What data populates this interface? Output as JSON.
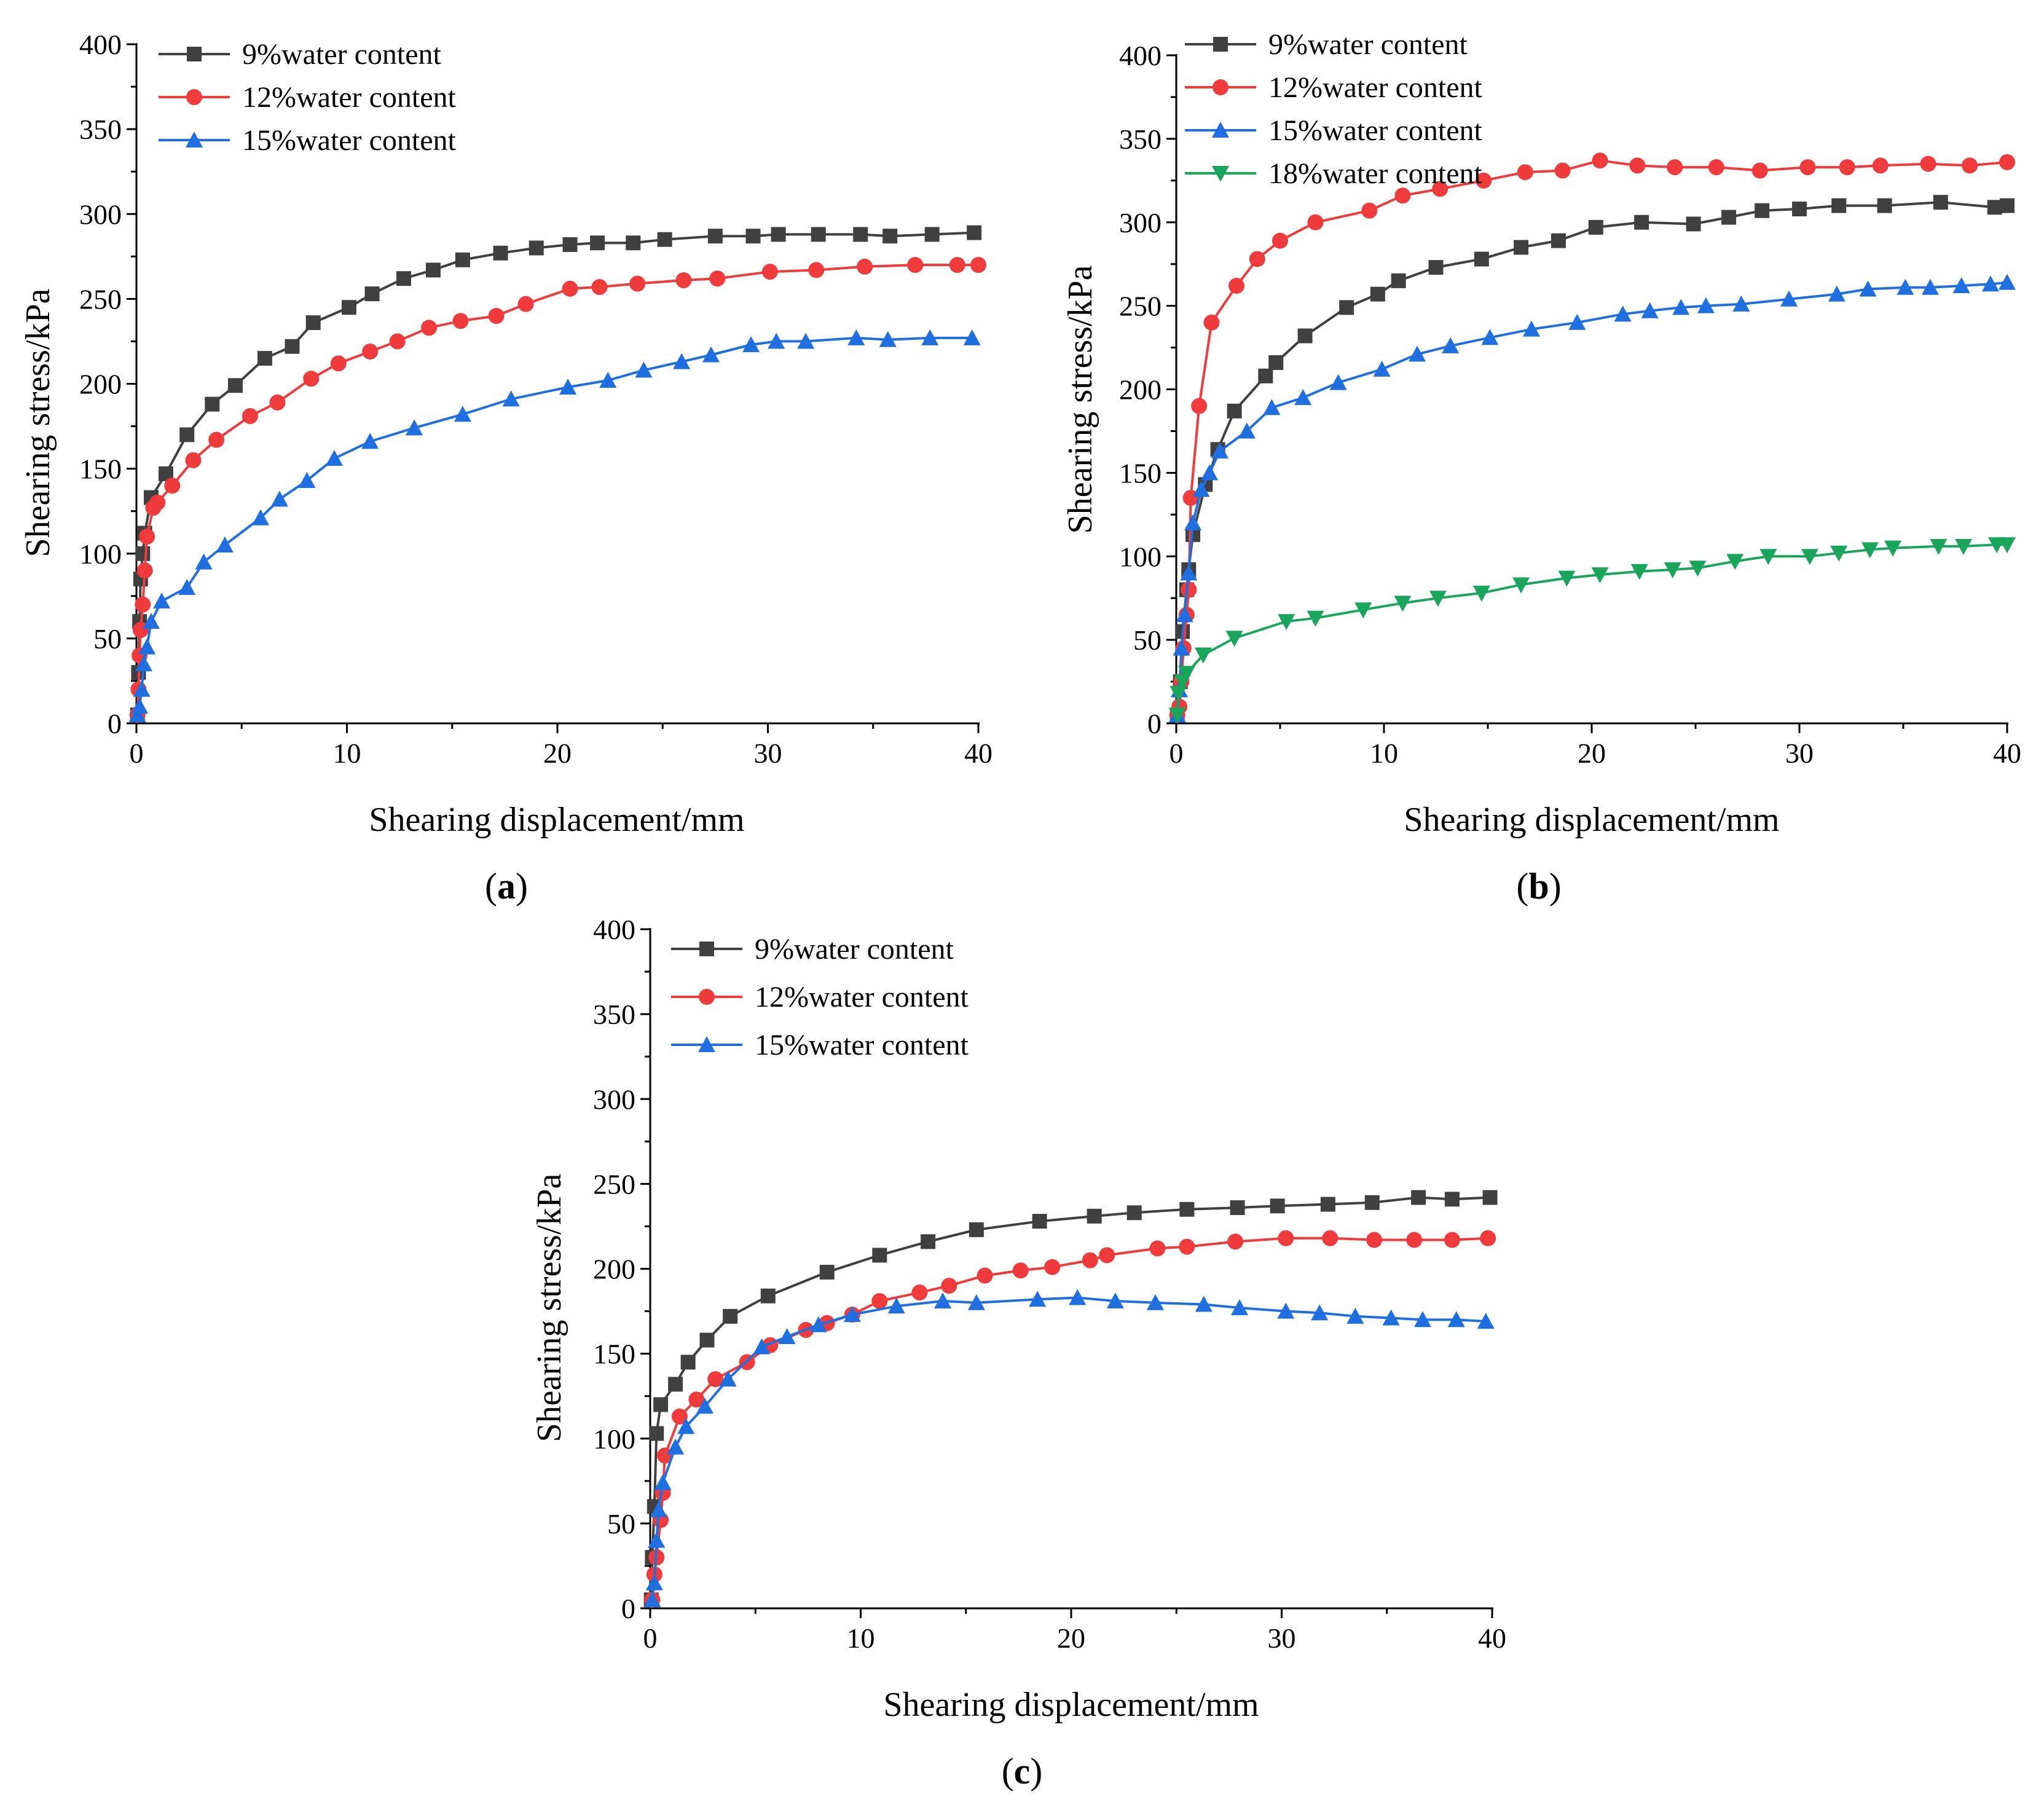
{
  "figure_labels": [
    "a",
    "b",
    "c"
  ],
  "chart_data": [
    {
      "type": "line",
      "panel": "a",
      "xlabel": "Shearing displacement/mm",
      "ylabel": "Shearing stress/kPa",
      "xlim": [
        0,
        40
      ],
      "ylim": [
        0,
        400
      ],
      "xticks": [
        0,
        10,
        20,
        30,
        40
      ],
      "yticks": [
        0,
        50,
        100,
        150,
        200,
        250,
        300,
        350,
        400
      ],
      "legend_position": "top-left",
      "series": [
        {
          "name": "9%water content",
          "color": "#404040",
          "marker": "square",
          "x": [
            0.05,
            0.1,
            0.15,
            0.2,
            0.3,
            0.4,
            0.7,
            1.4,
            2.4,
            3.6,
            4.7,
            6.1,
            7.4,
            8.4,
            10.1,
            11.2,
            12.7,
            14.1,
            15.5,
            17.3,
            19.0,
            20.6,
            21.9,
            23.6,
            25.1,
            27.5,
            29.3,
            30.5,
            32.4,
            34.4,
            35.8,
            37.8,
            39.8
          ],
          "y": [
            5,
            30,
            60,
            85,
            100,
            112,
            133,
            147,
            170,
            188,
            199,
            215,
            222,
            236,
            245,
            253,
            262,
            267,
            273,
            277,
            280,
            282,
            283,
            283,
            285,
            287,
            287,
            288,
            288,
            288,
            287,
            288,
            289
          ]
        },
        {
          "name": "12%water content",
          "color": "#ef3b3b",
          "marker": "circle",
          "x": [
            0.05,
            0.1,
            0.15,
            0.2,
            0.3,
            0.4,
            0.5,
            0.8,
            1.0,
            1.7,
            2.7,
            3.8,
            5.4,
            6.7,
            8.3,
            9.6,
            11.1,
            12.4,
            13.9,
            15.4,
            17.1,
            18.5,
            20.6,
            22.0,
            23.8,
            26.0,
            27.6,
            30.1,
            32.3,
            34.6,
            37.0,
            39.0,
            40.0
          ],
          "y": [
            5,
            20,
            40,
            55,
            70,
            90,
            110,
            127,
            130,
            140,
            155,
            167,
            181,
            189,
            203,
            212,
            219,
            225,
            233,
            237,
            240,
            247,
            256,
            257,
            259,
            261,
            262,
            266,
            267,
            269,
            270,
            270,
            270
          ]
        },
        {
          "name": "15%water content",
          "color": "#1f6fe0",
          "marker": "triangle",
          "x": [
            0.05,
            0.15,
            0.25,
            0.35,
            0.5,
            0.7,
            1.2,
            2.4,
            3.2,
            4.2,
            5.9,
            6.8,
            8.1,
            9.4,
            11.1,
            13.2,
            15.5,
            17.8,
            20.5,
            22.4,
            24.1,
            25.9,
            27.3,
            29.2,
            30.4,
            31.8,
            34.2,
            35.7,
            37.7,
            39.7
          ],
          "y": [
            5,
            10,
            20,
            35,
            45,
            60,
            72,
            80,
            95,
            105,
            121,
            132,
            143,
            156,
            166,
            174,
            182,
            191,
            198,
            202,
            208,
            213,
            217,
            223,
            225,
            225,
            227,
            226,
            227,
            227
          ]
        }
      ]
    },
    {
      "type": "line",
      "panel": "b",
      "xlabel": "Shearing displacement/mm",
      "ylabel": "Shearing stress/kPa",
      "xlim": [
        0,
        40
      ],
      "ylim": [
        0,
        400
      ],
      "xticks": [
        0,
        10,
        20,
        30,
        40
      ],
      "yticks": [
        0,
        50,
        100,
        150,
        200,
        250,
        300,
        350,
        400
      ],
      "legend_position": "top-left",
      "series": [
        {
          "name": "9%water content",
          "color": "#404040",
          "marker": "square",
          "x": [
            0.05,
            0.2,
            0.3,
            0.5,
            0.6,
            0.8,
            1.4,
            2.0,
            2.8,
            4.3,
            4.8,
            6.2,
            8.2,
            9.7,
            10.7,
            12.5,
            14.7,
            16.6,
            18.4,
            20.2,
            22.4,
            24.9,
            26.6,
            28.2,
            30.0,
            31.9,
            34.1,
            36.8,
            39.4,
            40.0
          ],
          "y": [
            5,
            25,
            55,
            80,
            92,
            113,
            143,
            164,
            187,
            208,
            216,
            232,
            249,
            257,
            265,
            273,
            278,
            285,
            289,
            297,
            300,
            299,
            303,
            307,
            308,
            310,
            310,
            312,
            309,
            310
          ]
        },
        {
          "name": "12%water content",
          "color": "#ef3b3b",
          "marker": "circle",
          "x": [
            0.05,
            0.15,
            0.25,
            0.35,
            0.5,
            0.6,
            0.7,
            1.1,
            1.7,
            2.9,
            3.9,
            5.0,
            6.7,
            9.3,
            10.9,
            12.7,
            14.8,
            16.8,
            18.6,
            20.4,
            22.2,
            24.0,
            26.0,
            28.1,
            30.4,
            32.3,
            33.9,
            36.2,
            38.2,
            40.0
          ],
          "y": [
            5,
            10,
            25,
            45,
            65,
            80,
            135,
            190,
            240,
            262,
            278,
            289,
            300,
            307,
            316,
            320,
            325,
            330,
            331,
            337,
            334,
            333,
            333,
            331,
            333,
            333,
            334,
            335,
            334,
            336
          ]
        },
        {
          "name": "15%water content",
          "color": "#1f6fe0",
          "marker": "triangle",
          "x": [
            0.05,
            0.15,
            0.25,
            0.4,
            0.6,
            0.8,
            1.2,
            1.6,
            2.1,
            3.4,
            4.6,
            6.1,
            7.8,
            9.9,
            11.6,
            13.2,
            15.1,
            17.1,
            19.3,
            21.5,
            22.8,
            24.3,
            25.5,
            27.2,
            29.5,
            31.8,
            33.3,
            35.1,
            36.3,
            37.8,
            39.2,
            40.0
          ],
          "y": [
            5,
            20,
            45,
            65,
            90,
            120,
            140,
            150,
            163,
            175,
            189,
            195,
            204,
            212,
            221,
            226,
            231,
            236,
            240,
            245,
            247,
            249,
            250,
            251,
            254,
            257,
            260,
            261,
            261,
            262,
            263,
            264
          ]
        },
        {
          "name": "18%water content",
          "color": "#1aa65a",
          "marker": "triangle-down",
          "x": [
            0.05,
            0.1,
            0.3,
            0.5,
            1.3,
            2.8,
            5.3,
            6.7,
            9.0,
            10.9,
            12.6,
            14.7,
            16.6,
            18.8,
            20.4,
            22.3,
            23.9,
            25.1,
            26.9,
            28.5,
            30.5,
            31.9,
            33.4,
            34.5,
            36.7,
            37.9,
            39.5,
            40.0
          ],
          "y": [
            5,
            18,
            25,
            30,
            41,
            51,
            61,
            63,
            68,
            72,
            75,
            78,
            83,
            87,
            89,
            91,
            92,
            93,
            97,
            100,
            100,
            102,
            104,
            105,
            106,
            106,
            107,
            107
          ]
        }
      ]
    },
    {
      "type": "line",
      "panel": "c",
      "xlabel": "Shearing displacement/mm",
      "ylabel": "Shearing stress/kPa",
      "xlim": [
        0,
        40
      ],
      "ylim": [
        0,
        400
      ],
      "xticks": [
        0,
        10,
        20,
        30,
        40
      ],
      "yticks": [
        0,
        50,
        100,
        150,
        200,
        250,
        300,
        350,
        400
      ],
      "legend_position": "top-left",
      "series": [
        {
          "name": "9%water content",
          "color": "#404040",
          "marker": "square",
          "x": [
            0.05,
            0.1,
            0.2,
            0.3,
            0.5,
            1.2,
            1.8,
            2.7,
            3.8,
            5.6,
            8.4,
            10.9,
            13.2,
            15.5,
            18.5,
            21.1,
            23.0,
            25.5,
            27.9,
            29.8,
            32.2,
            34.3,
            36.5,
            38.1,
            39.9
          ],
          "y": [
            5,
            30,
            60,
            103,
            120,
            132,
            145,
            158,
            172,
            184,
            198,
            208,
            216,
            223,
            228,
            231,
            233,
            235,
            236,
            237,
            238,
            239,
            242,
            241,
            242
          ]
        },
        {
          "name": "12%water content",
          "color": "#ef3b3b",
          "marker": "circle",
          "x": [
            0.1,
            0.2,
            0.3,
            0.5,
            0.6,
            0.7,
            1.4,
            2.2,
            3.1,
            4.6,
            5.7,
            7.4,
            8.4,
            9.6,
            10.9,
            12.8,
            14.2,
            15.9,
            17.6,
            19.1,
            20.9,
            21.7,
            24.1,
            25.5,
            27.8,
            30.2,
            32.3,
            34.4,
            36.3,
            38.1,
            39.8
          ],
          "y": [
            5,
            20,
            30,
            52,
            68,
            90,
            113,
            123,
            135,
            145,
            155,
            164,
            168,
            173,
            181,
            186,
            190,
            196,
            199,
            201,
            205,
            208,
            212,
            213,
            216,
            218,
            218,
            217,
            217,
            217,
            218
          ]
        },
        {
          "name": "15%water content",
          "color": "#1f6fe0",
          "marker": "triangle",
          "x": [
            0.1,
            0.2,
            0.3,
            0.4,
            0.6,
            1.2,
            1.7,
            2.6,
            3.7,
            5.3,
            6.5,
            8.0,
            9.6,
            11.7,
            13.9,
            15.5,
            18.4,
            20.3,
            22.1,
            24.0,
            26.3,
            28.0,
            30.2,
            31.8,
            33.5,
            35.2,
            36.7,
            38.3,
            39.7
          ],
          "y": [
            5,
            15,
            40,
            58,
            74,
            95,
            107,
            119,
            135,
            154,
            160,
            167,
            173,
            178,
            181,
            180,
            182,
            183,
            181,
            180,
            179,
            177,
            175,
            174,
            172,
            171,
            170,
            170,
            169
          ]
        }
      ]
    }
  ]
}
